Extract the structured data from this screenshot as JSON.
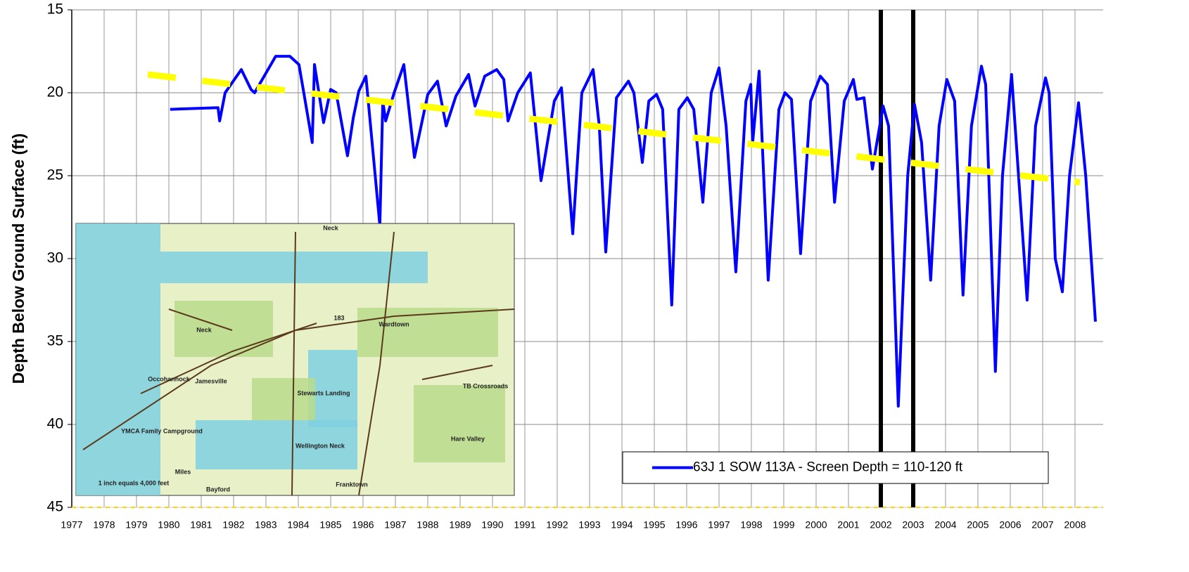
{
  "chart_data": {
    "type": "line",
    "y_label": "Depth Below Ground Surface (ft)",
    "ylim": [
      15,
      45
    ],
    "yticks": [
      15,
      20,
      25,
      30,
      35,
      40,
      45
    ],
    "invert_y": true,
    "xlim": [
      1977,
      2008.87
    ],
    "xticks": [
      1977,
      1978,
      1979,
      1980,
      1981,
      1982,
      1983,
      1984,
      1985,
      1986,
      1987,
      1988,
      1989,
      1990,
      1991,
      1992,
      1993,
      1994,
      1995,
      1996,
      1997,
      1998,
      1999,
      2000,
      2001,
      2002,
      2003,
      2004,
      2005,
      2006,
      2007,
      2008
    ],
    "grid": true,
    "legend": "lower right",
    "vlines": [
      2002,
      2003
    ],
    "series": [
      {
        "name": "63J  1 SOW 113A - Screen Depth = 110-120 ft",
        "color": "#0000ff",
        "x": [
          1980.04,
          1981.52,
          1981.57,
          1981.74,
          1982.24,
          1982.54,
          1982.65,
          1983.3,
          1983.74,
          1984.02,
          1984.17,
          1984.43,
          1984.5,
          1984.78,
          1985.0,
          1985.17,
          1985.52,
          1985.7,
          1985.87,
          1986.09,
          1986.52,
          1986.61,
          1986.7,
          1986.96,
          1987.26,
          1987.59,
          1988.0,
          1988.3,
          1988.57,
          1988.87,
          1989.26,
          1989.46,
          1989.76,
          1990.13,
          1990.35,
          1990.48,
          1990.78,
          1991.17,
          1991.5,
          1991.91,
          1992.13,
          1992.48,
          1992.76,
          1993.11,
          1993.3,
          1993.5,
          1993.83,
          1994.2,
          1994.37,
          1994.63,
          1994.83,
          1995.07,
          1995.26,
          1995.54,
          1995.76,
          1996.02,
          1996.22,
          1996.5,
          1996.76,
          1997.0,
          1997.22,
          1997.52,
          1997.83,
          1997.98,
          1998.04,
          1998.24,
          1998.52,
          1998.85,
          1999.04,
          1999.24,
          1999.52,
          1999.83,
          2000.13,
          2000.35,
          2000.57,
          2000.87,
          2001.15,
          2001.26,
          2001.48,
          2001.74,
          2002.07,
          2002.24,
          2002.54,
          2002.83,
          2003.04,
          2003.26,
          2003.54,
          2003.8,
          2004.04,
          2004.28,
          2004.54,
          2004.8,
          2005.11,
          2005.24,
          2005.54,
          2005.76,
          2006.04,
          2006.22,
          2006.52,
          2006.78,
          2007.09,
          2007.2,
          2007.39,
          2007.61,
          2007.83,
          2008.11,
          2008.33,
          2008.63
        ],
        "values": [
          21.0,
          20.9,
          21.7,
          20.0,
          18.6,
          19.8,
          20.0,
          17.8,
          17.8,
          18.3,
          20.0,
          23.0,
          18.3,
          21.8,
          19.8,
          20.0,
          23.8,
          21.5,
          19.9,
          19.0,
          28.0,
          20.5,
          21.7,
          20.0,
          18.3,
          23.9,
          20.1,
          19.3,
          22.0,
          20.2,
          18.9,
          20.8,
          19.0,
          18.6,
          19.2,
          21.7,
          20.0,
          18.8,
          25.3,
          20.5,
          19.7,
          28.5,
          20.0,
          18.6,
          22.0,
          29.6,
          20.3,
          19.3,
          20.0,
          24.2,
          20.5,
          20.1,
          21.0,
          32.8,
          21.0,
          20.3,
          21.0,
          26.6,
          20.0,
          18.5,
          22.0,
          30.8,
          20.5,
          19.5,
          23.0,
          18.7,
          31.3,
          21.0,
          20.0,
          20.4,
          29.7,
          20.5,
          19.0,
          19.5,
          26.6,
          20.5,
          19.2,
          20.4,
          20.3,
          24.6,
          20.8,
          22.0,
          38.9,
          25.0,
          20.7,
          23.0,
          31.3,
          22.0,
          19.2,
          20.5,
          32.2,
          22.0,
          18.4,
          19.5,
          36.8,
          25.0,
          18.9,
          24.0,
          32.5,
          22.0,
          19.1,
          20.0,
          30.0,
          32.0,
          25.0,
          20.6,
          25.0,
          33.8
        ]
      },
      {
        "color": "#ffff00",
        "dashed": true,
        "x": [
          1979.35,
          2008.15
        ],
        "values": [
          18.9,
          25.4
        ]
      }
    ]
  },
  "inset": {
    "labels": [
      "Neck",
      "Occohannock",
      "Neck",
      "Jamesville",
      "Wardtown",
      "Stewarts Landing",
      "Hare Valley",
      "TB Crossroads",
      "Wellington Neck",
      "Franktown",
      "Bayford",
      "YMCA Family Campground",
      "1 inch equals 4,000 feet",
      "Miles",
      "183"
    ]
  }
}
